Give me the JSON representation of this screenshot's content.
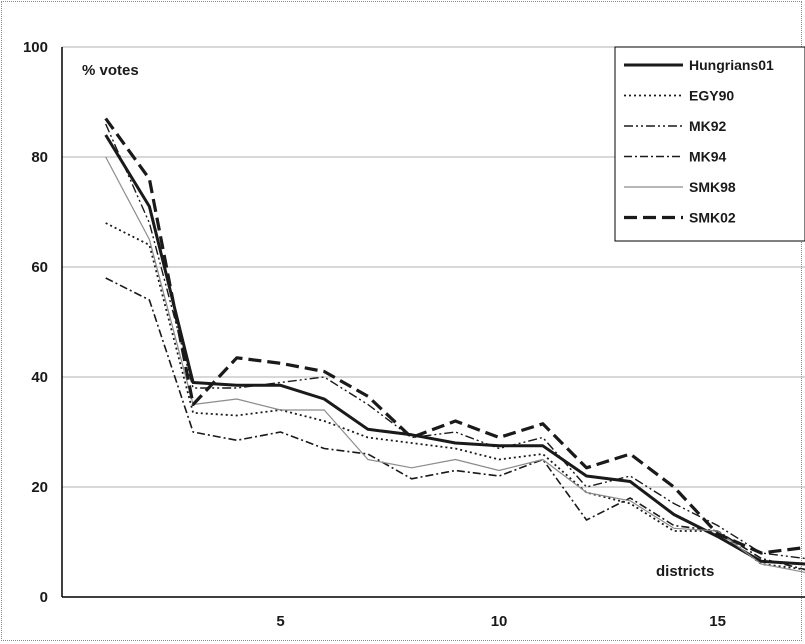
{
  "chart_data": {
    "type": "line",
    "title": "",
    "ylabel": "% votes",
    "xlabel": "districts",
    "ylim": [
      0,
      100
    ],
    "xlim": [
      0,
      17
    ],
    "x_ticks": [
      5,
      10,
      15
    ],
    "y_ticks": [
      0,
      20,
      40,
      60,
      80,
      100
    ],
    "grid": "horizontal",
    "legend_position": "top-right",
    "x": [
      1,
      2,
      3,
      4,
      5,
      6,
      7,
      8,
      9,
      10,
      11,
      12,
      13,
      14,
      15,
      16,
      17
    ],
    "series": [
      {
        "name": "Hungrians01",
        "style": "solid-thick",
        "values": [
          84,
          71,
          39,
          38.5,
          38.5,
          36,
          30.5,
          29.5,
          28,
          27.5,
          27.5,
          22,
          21,
          15,
          11,
          6.5,
          6
        ]
      },
      {
        "name": "EGY90",
        "style": "dotted",
        "values": [
          68,
          64,
          33.5,
          33,
          34,
          32,
          29,
          28,
          27,
          25,
          26,
          19,
          17,
          12,
          12,
          6,
          5
        ]
      },
      {
        "name": "MK92",
        "style": "dash-dot-dot",
        "values": [
          86,
          68,
          38,
          38,
          39,
          40,
          35,
          29,
          30,
          27,
          29,
          20,
          22,
          17,
          13,
          8,
          7
        ]
      },
      {
        "name": "MK94",
        "style": "dash-dot",
        "values": [
          58,
          54,
          30,
          28.5,
          30,
          27,
          26,
          21.5,
          23,
          22,
          25,
          14,
          18,
          13,
          12,
          7,
          5
        ]
      },
      {
        "name": "SMK98",
        "style": "thin-gray",
        "values": [
          80,
          65,
          35,
          36,
          34,
          34,
          25,
          23.5,
          25,
          23,
          25,
          19,
          17.5,
          12.5,
          12,
          6,
          4.5
        ]
      },
      {
        "name": "SMK02",
        "style": "dashed-thick",
        "values": [
          87,
          76,
          35,
          43.5,
          42.5,
          41,
          36.5,
          29,
          32,
          29,
          31.5,
          23.5,
          26,
          20,
          11.5,
          8,
          9
        ]
      }
    ]
  },
  "colors": {
    "line": "#1a1a1a",
    "grid": "#b0b0b0",
    "smk98": "#8c8c8c"
  }
}
